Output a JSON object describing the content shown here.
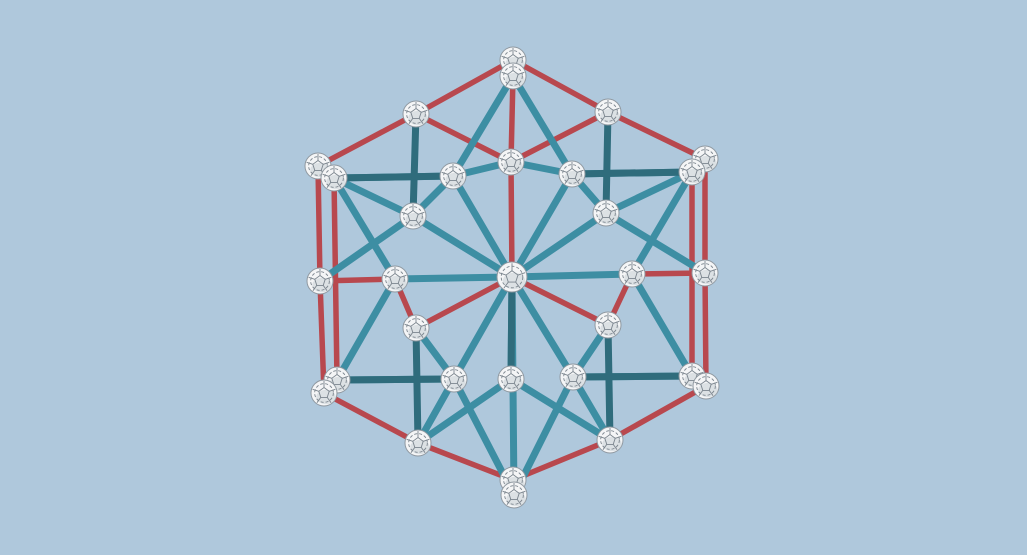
{
  "scene": {
    "background": "#afc8dc",
    "colors": {
      "edge_red": "#b8484e",
      "edge_teal": "#3d8ea3",
      "edge_dark": "#2f6c7c",
      "node": "#f4f5f6"
    },
    "node_style": "white faceted sphere",
    "node_count": 37,
    "edge_count_red": 30,
    "edge_count_teal": 36
  }
}
